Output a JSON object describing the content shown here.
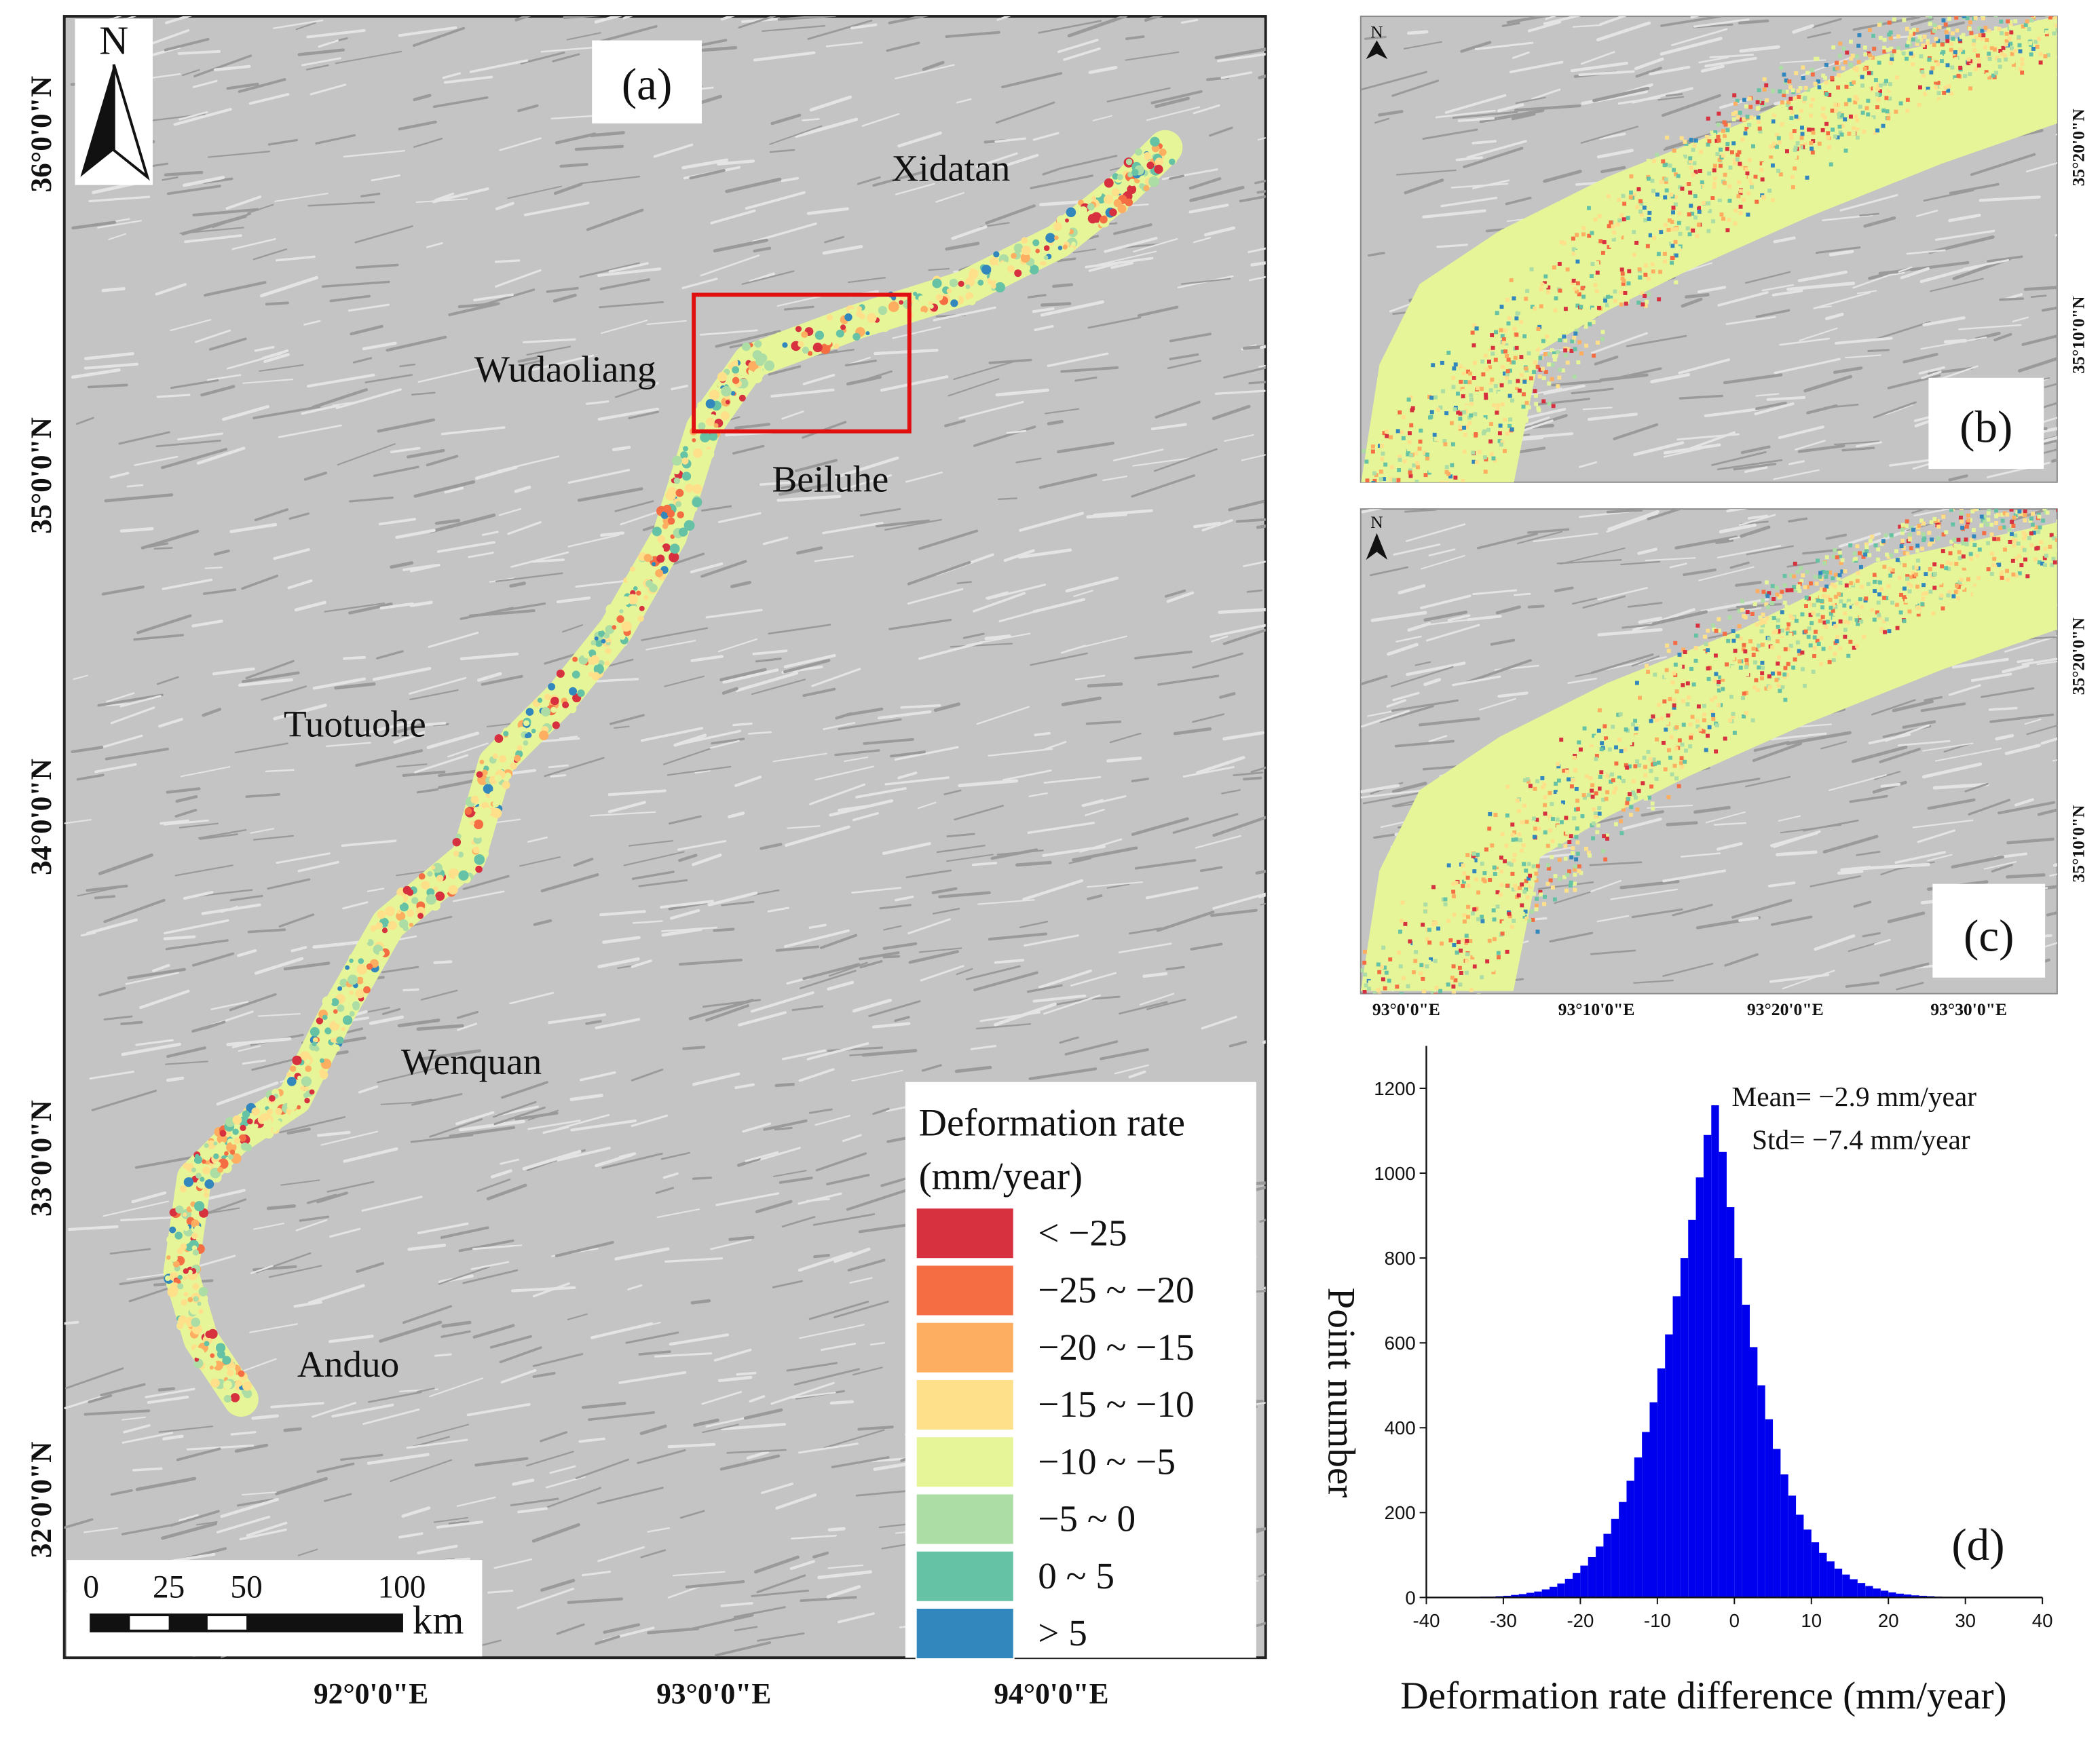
{
  "map_a": {
    "label": "(a)",
    "north": "N",
    "places": [
      "Xidatan",
      "Wudaoliang",
      "Beiluhe",
      "Tuotuohe",
      "Wenquan",
      "Anduo"
    ],
    "lat_labels": [
      "36°0'0\"N",
      "35°0'0\"N",
      "34°0'0\"N",
      "33°0'0\"N",
      "32°0'0\"N"
    ],
    "lon_labels": [
      "92°0'0\"E",
      "93°0'0\"E",
      "94°0'0\"E"
    ],
    "scale_bar": {
      "labels": [
        "0",
        "25",
        "50",
        "100"
      ],
      "unit": "km"
    },
    "legend": {
      "title": [
        "Deformation rate",
        "(mm/year)"
      ],
      "items": [
        {
          "label": "< −25",
          "color": "#d7303f"
        },
        {
          "label": "−25 ~ −20",
          "color": "#f46d43"
        },
        {
          "label": "−20 ~ −15",
          "color": "#fdae61"
        },
        {
          "label": "−15 ~ −10",
          "color": "#fee08b"
        },
        {
          "label": "−10 ~ −5",
          "color": "#e6f598"
        },
        {
          "label": "−5 ~ 0",
          "color": "#abdda4"
        },
        {
          "label": "0 ~ 5",
          "color": "#66c2a5"
        },
        {
          "label": "> 5",
          "color": "#3288bd"
        }
      ]
    }
  },
  "map_b": {
    "label": "(b)",
    "north": "N",
    "lat_labels": [
      "35°20'0\"N",
      "35°10'0\"N"
    ]
  },
  "map_c": {
    "label": "(c)",
    "north": "N",
    "lat_labels": [
      "35°20'0\"N",
      "35°10'0\"N"
    ],
    "lon_labels": [
      "93°0'0\"E",
      "93°10'0\"E",
      "93°20'0\"E",
      "93°30'0\"E"
    ]
  },
  "chart_data": {
    "type": "histogram",
    "label": "(d)",
    "x_label": "Deformation rate difference (mm/year)",
    "y_label": "Point number",
    "annotations": [
      "Mean= −2.9 mm/year",
      "Std= −7.4 mm/year"
    ],
    "color": "#0000ee",
    "bins": [
      -40,
      -39,
      -38,
      -37,
      -36,
      -35,
      -34,
      -33,
      -32,
      -31,
      -30,
      -29,
      -28,
      -27,
      -26,
      -25,
      -24,
      -23,
      -22,
      -21,
      -20,
      -19,
      -18,
      -17,
      -16,
      -15,
      -14,
      -13,
      -12,
      -11,
      -10,
      -9,
      -8,
      -7,
      -6,
      -5,
      -4,
      -3,
      -2,
      -1,
      0,
      1,
      2,
      3,
      4,
      5,
      6,
      7,
      8,
      9,
      10,
      11,
      12,
      13,
      14,
      15,
      16,
      17,
      18,
      19,
      20,
      21,
      22,
      23,
      24,
      25,
      26,
      27,
      28,
      29,
      30,
      31,
      32,
      33,
      34,
      35,
      36,
      37,
      38,
      39,
      40
    ],
    "values": [
      0,
      0,
      0,
      0,
      0,
      1,
      1,
      2,
      2,
      3,
      4,
      6,
      8,
      11,
      14,
      19,
      25,
      33,
      44,
      58,
      75,
      95,
      120,
      150,
      185,
      225,
      275,
      330,
      390,
      460,
      540,
      620,
      710,
      800,
      890,
      990,
      1090,
      1160,
      1050,
      920,
      800,
      690,
      590,
      500,
      420,
      350,
      290,
      240,
      195,
      160,
      130,
      105,
      85,
      68,
      54,
      43,
      34,
      27,
      21,
      16,
      12,
      9,
      7,
      5,
      4,
      3,
      2,
      1,
      1,
      1,
      0,
      0,
      0,
      0,
      0,
      0,
      0,
      0,
      0,
      0
    ],
    "xlim": [
      -40,
      40
    ],
    "ylim": [
      0,
      1300
    ],
    "xticks": [
      -40,
      -30,
      -20,
      -10,
      0,
      10,
      20,
      30,
      40
    ],
    "yticks": [
      0,
      200,
      400,
      600,
      800,
      1000,
      1200
    ]
  }
}
